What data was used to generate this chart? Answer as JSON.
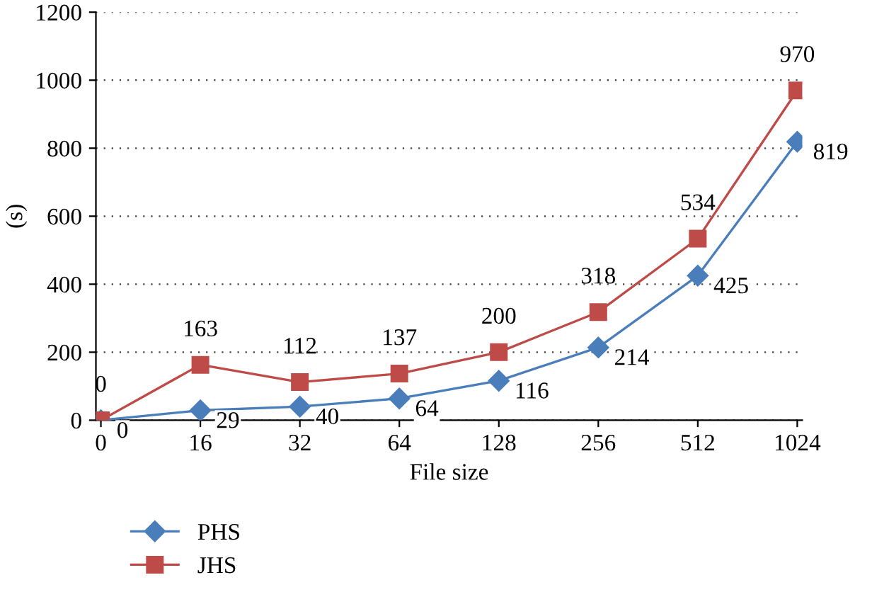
{
  "chart_data": {
    "type": "line",
    "xlabel": "File size",
    "ylabel": "(s)",
    "categories": [
      "0",
      "16",
      "32",
      "64",
      "128",
      "256",
      "512",
      "1024"
    ],
    "series": [
      {
        "name": "PHS",
        "color": "#4a7ebb",
        "marker": "diamond",
        "values": [
          0,
          29,
          40,
          64,
          116,
          214,
          425,
          819
        ]
      },
      {
        "name": "JHS",
        "color": "#be4b48",
        "marker": "square",
        "values": [
          0,
          163,
          112,
          137,
          200,
          318,
          534,
          970
        ]
      }
    ],
    "ylim": [
      0,
      1200
    ],
    "yticks": [
      0,
      200,
      400,
      600,
      800,
      1000,
      1200
    ],
    "grid": "y",
    "legend": "bottom left",
    "data_labels": true,
    "line_style": "solid"
  }
}
